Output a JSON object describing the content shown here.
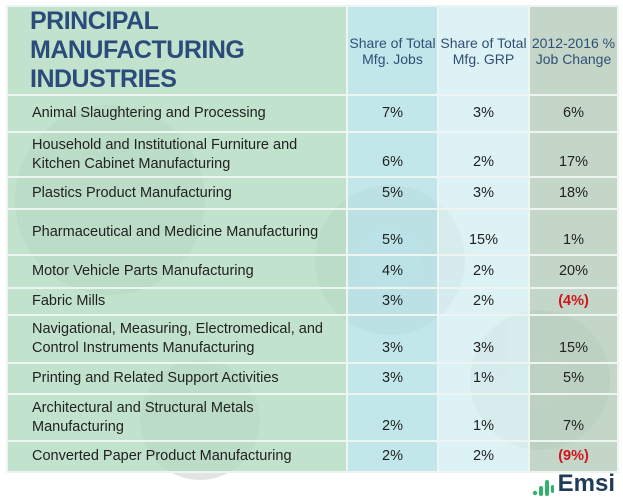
{
  "chart_data": {
    "type": "table",
    "title": "PRINCIPAL MANUFACTURING INDUSTRIES",
    "columns": [
      "Share of Total Mfg. Jobs",
      "Share of Total Mfg. GRP",
      "2012-2016 % Job Change"
    ],
    "rows": [
      {
        "name": "Animal Slaughtering and Processing",
        "jobs": "7%",
        "grp": "3%",
        "change": "6%",
        "negative": false
      },
      {
        "name": "Household and Institutional Furniture and Kitchen Cabinet Manufacturing",
        "jobs": "6%",
        "grp": "2%",
        "change": "17%",
        "negative": false
      },
      {
        "name": "Plastics Product Manufacturing",
        "jobs": "5%",
        "grp": "3%",
        "change": "18%",
        "negative": false
      },
      {
        "name": "Pharmaceutical and Medicine Manufacturing",
        "jobs": "5%",
        "grp": "15%",
        "change": "1%",
        "negative": false
      },
      {
        "name": "Motor Vehicle Parts Manufacturing",
        "jobs": "4%",
        "grp": "2%",
        "change": "20%",
        "negative": false
      },
      {
        "name": "Fabric Mills",
        "jobs": "3%",
        "grp": "2%",
        "change": "(4%)",
        "negative": true
      },
      {
        "name": "Navigational, Measuring, Electromedical, and Control Instruments Manufacturing",
        "jobs": "3%",
        "grp": "3%",
        "change": "15%",
        "negative": false
      },
      {
        "name": "Printing and Related Support Activities",
        "jobs": "3%",
        "grp": "1%",
        "change": "5%",
        "negative": false
      },
      {
        "name": "Architectural and Structural Metals Manufacturing",
        "jobs": "2%",
        "grp": "1%",
        "change": "7%",
        "negative": false
      },
      {
        "name": "Converted Paper Product Manufacturing",
        "jobs": "2%",
        "grp": "2%",
        "change": "(9%)",
        "negative": true
      }
    ],
    "colors": {
      "title": "#2b4c7b",
      "negative": "#d0141e",
      "logo_green": "#2fb36b",
      "logo_text": "#1d3c5a"
    }
  },
  "brand": {
    "logo": "Emsi"
  }
}
